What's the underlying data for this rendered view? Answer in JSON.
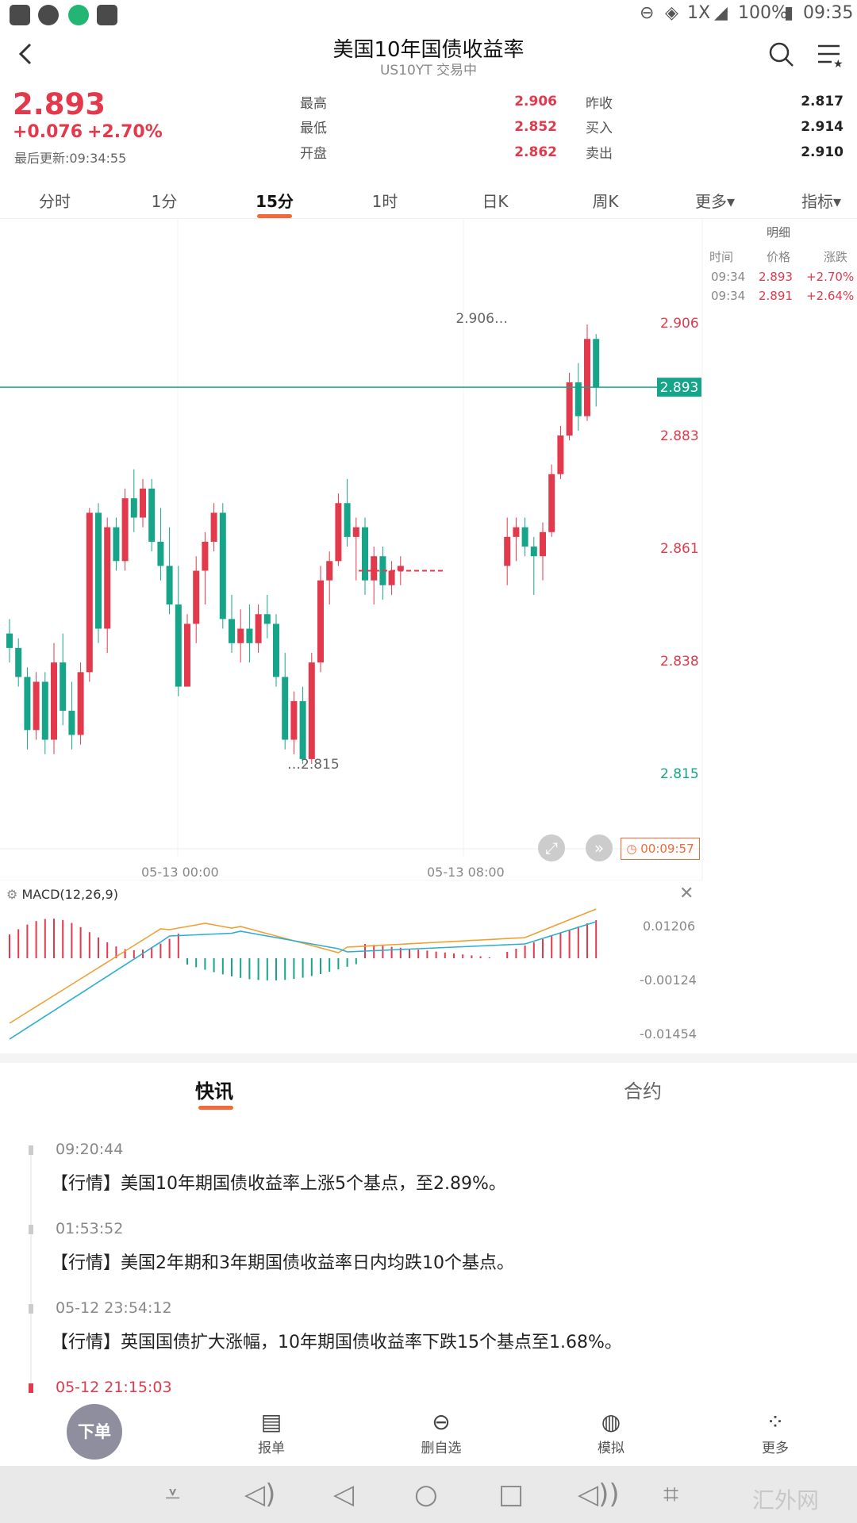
{
  "status_bar": {
    "network": "1X",
    "battery": "100%",
    "time": "09:35",
    "colors": {
      "msg": "#4a4a4a",
      "wechat": "#4a4a4a",
      "p": "#22b573",
      "activity": "#4a4a4a"
    }
  },
  "header": {
    "title": "美国10年国债收益率",
    "subtitle": "US10YT 交易中"
  },
  "quote": {
    "price": "2.893",
    "change": "+0.076",
    "change_pct": "+2.70%",
    "last_update": "最后更新:09:34:55",
    "stats": [
      {
        "label": "最高",
        "value": "2.906",
        "color": "red"
      },
      {
        "label": "最低",
        "value": "2.852",
        "color": "red"
      },
      {
        "label": "开盘",
        "value": "2.862",
        "color": "red"
      }
    ],
    "stats2": [
      {
        "label": "昨收",
        "value": "2.817"
      },
      {
        "label": "买入",
        "value": "2.914"
      },
      {
        "label": "卖出",
        "value": "2.910"
      }
    ]
  },
  "tabs": [
    "分时",
    "1分",
    "15分",
    "1时",
    "日K",
    "周K",
    "更多▾",
    "指标▾"
  ],
  "active_tab": "15分",
  "detail_panel": {
    "title": "明细",
    "headers": [
      "时间",
      "价格",
      "涨跌"
    ],
    "rows": [
      {
        "time": "09:34",
        "price": "2.893",
        "change": "+2.70%"
      },
      {
        "time": "09:34",
        "price": "2.891",
        "change": "+2.64%"
      }
    ]
  },
  "chart_data": {
    "type": "candlestick",
    "price_axis_labels": [
      "2.906",
      "2.883",
      "2.861",
      "2.838",
      "2.815"
    ],
    "current_price_label": "2.893",
    "high_marker": "2.906",
    "low_marker": "2.815",
    "x_labels": [
      "05-13 00:00",
      "05-13 08:00"
    ],
    "timer": "00:09:57",
    "candles": [
      [
        2.842,
        2.845,
        2.836,
        2.839
      ],
      [
        2.839,
        2.841,
        2.831,
        2.833
      ],
      [
        2.833,
        2.835,
        2.818,
        2.822
      ],
      [
        2.822,
        2.834,
        2.82,
        2.832
      ],
      [
        2.832,
        2.834,
        2.817,
        2.82
      ],
      [
        2.82,
        2.84,
        2.817,
        2.836
      ],
      [
        2.836,
        2.842,
        2.823,
        2.826
      ],
      [
        2.826,
        2.832,
        2.818,
        2.821
      ],
      [
        2.821,
        2.836,
        2.819,
        2.834
      ],
      [
        2.834,
        2.868,
        2.832,
        2.867
      ],
      [
        2.867,
        2.869,
        2.84,
        2.843
      ],
      [
        2.843,
        2.866,
        2.838,
        2.864
      ],
      [
        2.864,
        2.866,
        2.855,
        2.857
      ],
      [
        2.857,
        2.872,
        2.855,
        2.87
      ],
      [
        2.87,
        2.876,
        2.863,
        2.866
      ],
      [
        2.866,
        2.874,
        2.864,
        2.872
      ],
      [
        2.872,
        2.874,
        2.859,
        2.861
      ],
      [
        2.861,
        2.868,
        2.853,
        2.856
      ],
      [
        2.856,
        2.864,
        2.846,
        2.848
      ],
      [
        2.848,
        2.856,
        2.829,
        2.831
      ],
      [
        2.831,
        2.846,
        2.831,
        2.844
      ],
      [
        2.844,
        2.858,
        2.84,
        2.855
      ],
      [
        2.855,
        2.863,
        2.848,
        2.861
      ],
      [
        2.861,
        2.869,
        2.859,
        2.867
      ],
      [
        2.867,
        2.869,
        2.843,
        2.845
      ],
      [
        2.845,
        2.85,
        2.838,
        2.84
      ],
      [
        2.84,
        2.847,
        2.836,
        2.843
      ],
      [
        2.843,
        2.848,
        2.836,
        2.84
      ],
      [
        2.84,
        2.848,
        2.838,
        2.846
      ],
      [
        2.846,
        2.85,
        2.841,
        2.844
      ],
      [
        2.844,
        2.846,
        2.831,
        2.833
      ],
      [
        2.833,
        2.838,
        2.818,
        2.82
      ],
      [
        2.82,
        2.83,
        2.817,
        2.828
      ],
      [
        2.828,
        2.831,
        2.815,
        2.816
      ],
      [
        2.816,
        2.838,
        2.815,
        2.836
      ],
      [
        2.836,
        2.856,
        2.834,
        2.853
      ],
      [
        2.853,
        2.859,
        2.848,
        2.857
      ],
      [
        2.857,
        2.871,
        2.856,
        2.869
      ],
      [
        2.869,
        2.874,
        2.86,
        2.862
      ],
      [
        2.862,
        2.866,
        2.853,
        2.864
      ],
      [
        2.864,
        2.866,
        2.85,
        2.853
      ],
      [
        2.853,
        2.86,
        2.848,
        2.858
      ],
      [
        2.858,
        2.86,
        2.849,
        2.852
      ],
      [
        2.852,
        2.857,
        2.85,
        2.855
      ],
      [
        2.855,
        2.858,
        2.852,
        2.856
      ],
      [
        2.855,
        2.856,
        2.855,
        2.855
      ],
      [
        2.855,
        2.856,
        2.855,
        2.855
      ],
      [
        2.855,
        2.856,
        2.855,
        2.855
      ],
      [
        2.855,
        2.856,
        2.855,
        2.855
      ],
      [
        2.855,
        2.856,
        2.855,
        2.855
      ],
      [
        2.855,
        2.856,
        2.855,
        2.855
      ],
      [
        2.855,
        2.856,
        2.855,
        2.855
      ],
      [
        2.855,
        2.856,
        2.855,
        2.855
      ],
      [
        2.855,
        2.856,
        2.855,
        2.855
      ],
      [
        2.855,
        2.856,
        2.855,
        2.855
      ],
      [
        2.855,
        2.856,
        2.855,
        2.855
      ],
      [
        2.856,
        2.866,
        2.852,
        2.862
      ],
      [
        2.862,
        2.866,
        2.857,
        2.864
      ],
      [
        2.864,
        2.866,
        2.858,
        2.86
      ],
      [
        2.86,
        2.862,
        2.85,
        2.858
      ],
      [
        2.858,
        2.865,
        2.853,
        2.863
      ],
      [
        2.863,
        2.877,
        2.862,
        2.875
      ],
      [
        2.875,
        2.885,
        2.874,
        2.883
      ],
      [
        2.883,
        2.896,
        2.882,
        2.894
      ],
      [
        2.894,
        2.898,
        2.884,
        2.887
      ],
      [
        2.887,
        2.906,
        2.886,
        2.903
      ],
      [
        2.903,
        2.904,
        2.889,
        2.893
      ]
    ],
    "macd": {
      "label": "MACD(12,26,9)",
      "axis_labels": [
        "0.01206",
        "-0.00124",
        "-0.01454"
      ]
    }
  },
  "news_tabs": [
    "快讯",
    "合约"
  ],
  "news": [
    {
      "time": "09:20:44",
      "text": "【行情】美国10年期国债收益率上涨5个基点，至2.89%。"
    },
    {
      "time": "01:53:52",
      "text": "【行情】美国2年期和3年期国债收益率日内均跌10个基点。"
    },
    {
      "time": "05-12 23:54:12",
      "text": "【行情】英国国债扩大涨幅，10年期国债收益率下跌15个基点至1.68%。"
    },
    {
      "time": "05-12 21:15:03",
      "text": ""
    }
  ],
  "bottom_bar": {
    "order": "下单",
    "items": [
      "报单",
      "删自选",
      "模拟",
      "更多"
    ]
  },
  "watermark": "汇外网"
}
